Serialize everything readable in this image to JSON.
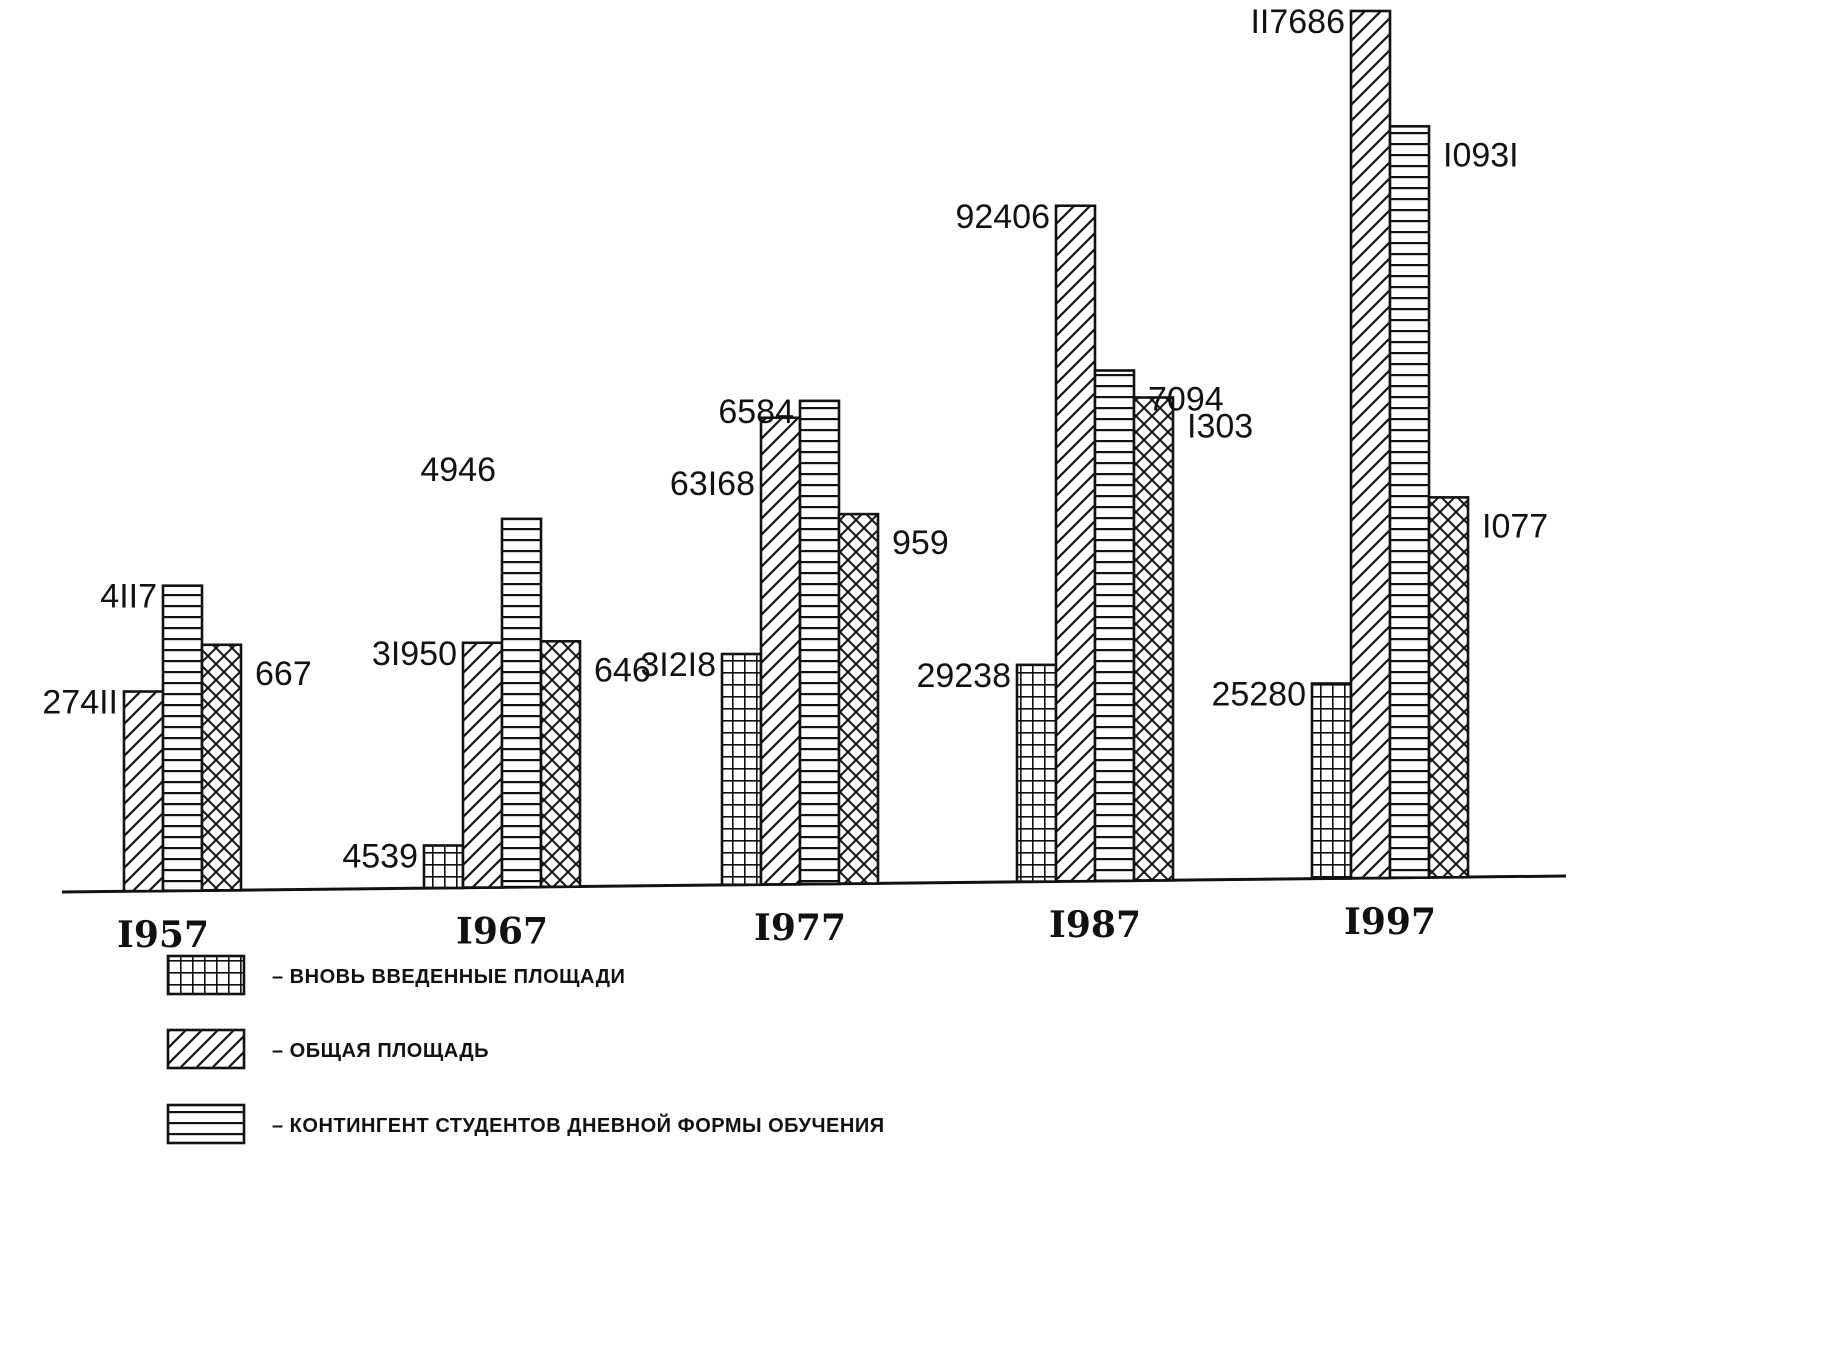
{
  "chart_data": {
    "type": "bar",
    "categories": [
      "I957",
      "I967",
      "I977",
      "I987",
      "I997"
    ],
    "series": [
      {
        "name": "вновь введенные площади",
        "pattern": "grid",
        "heights": [
          null,
          0.048,
          0.262,
          0.247,
          0.223
        ],
        "labels": [
          "",
          "4539",
          "3I2I8",
          "29238",
          "25280"
        ]
      },
      {
        "name": "общая площадь",
        "pattern": "diagonal",
        "heights": [
          0.225,
          0.277,
          0.53,
          0.77,
          0.992
        ],
        "labels": [
          "274II",
          "3I950",
          "63I68",
          "92406",
          "II7686"
        ]
      },
      {
        "name": "контингент студентов дневной формы обучения",
        "pattern": "horizontal",
        "heights": [
          0.344,
          0.417,
          0.549,
          0.582,
          0.86
        ],
        "labels": [
          "4II7",
          "4946",
          "6584",
          "7094",
          "I093I"
        ]
      },
      {
        "name": "",
        "pattern": "crosshatch",
        "heights": [
          0.277,
          0.278,
          0.42,
          0.551,
          0.435
        ],
        "labels": [
          "667",
          "646",
          "959",
          "I303",
          "I077"
        ]
      }
    ],
    "legend": [
      {
        "pattern": "grid",
        "text": "– вновь введенные площади"
      },
      {
        "pattern": "diagonal",
        "text": "– общая площадь"
      },
      {
        "pattern": "horizontal",
        "text": "– контингент студентов дневной формы обучения"
      }
    ],
    "baseline": "no y-axis, no grid, legend below"
  }
}
